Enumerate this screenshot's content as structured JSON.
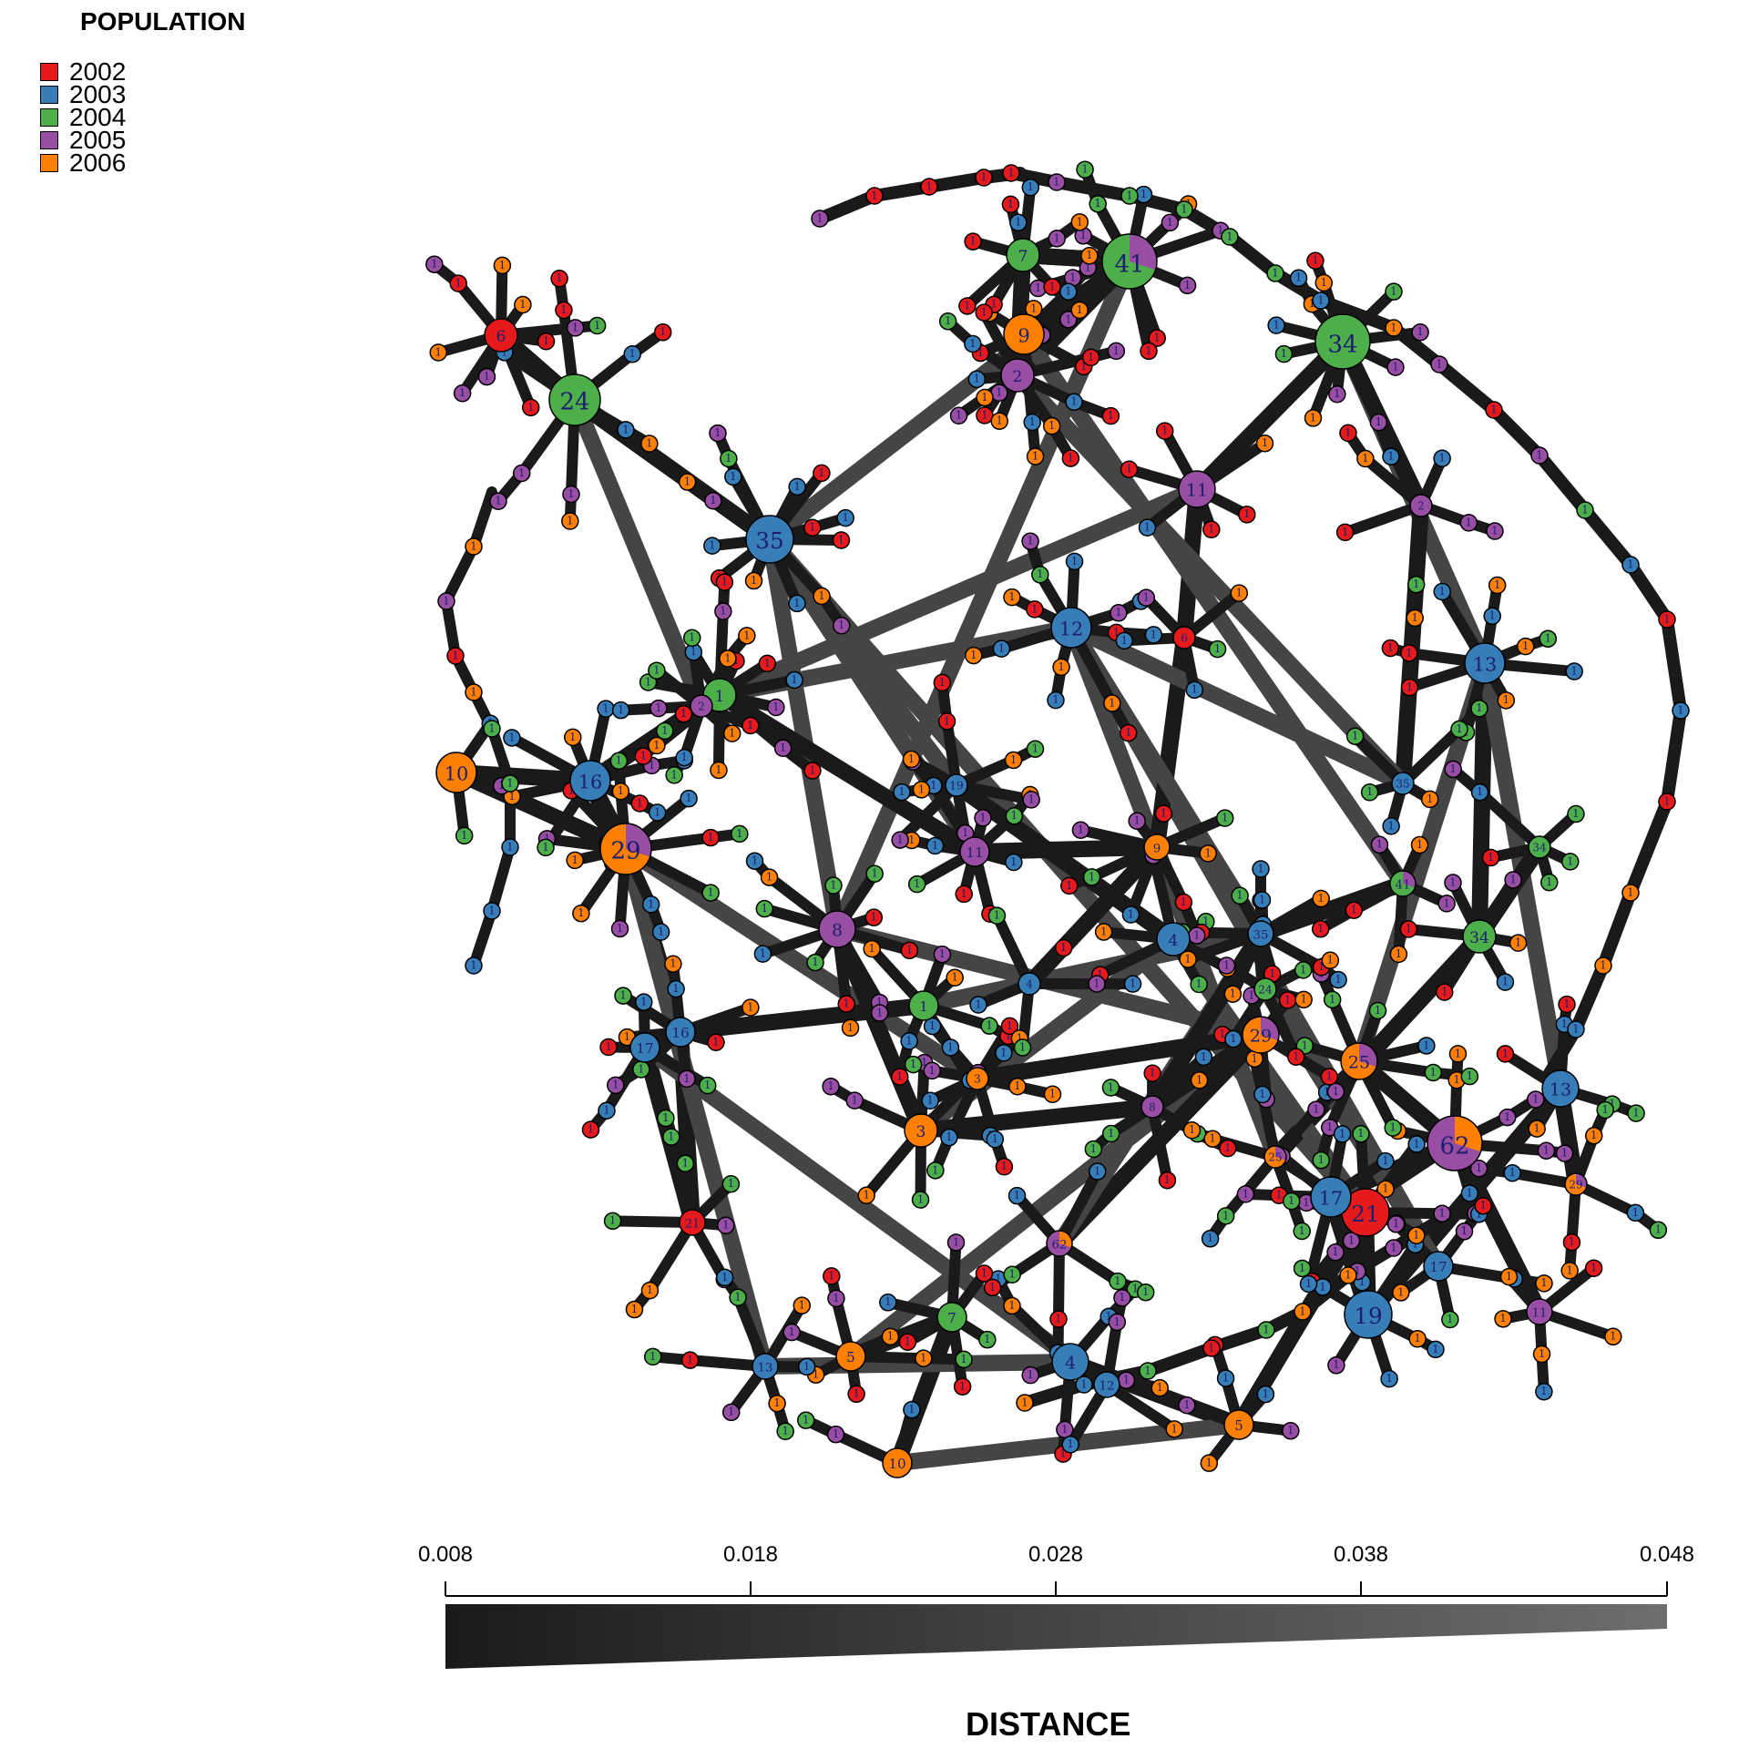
{
  "legend": {
    "title": "POPULATION",
    "items": [
      {
        "label": "2002",
        "color": "#e41a1c"
      },
      {
        "label": "2003",
        "color": "#377eb8"
      },
      {
        "label": "2004",
        "color": "#4daf4a"
      },
      {
        "label": "2005",
        "color": "#984ea3"
      },
      {
        "label": "2006",
        "color": "#ff7f00"
      }
    ]
  },
  "scale": {
    "title": "DISTANCE",
    "ticks": [
      "0.008",
      "0.018",
      "0.028",
      "0.038",
      "0.048"
    ],
    "color_start": "#1a1a1a",
    "color_end": "#6e6e6e"
  },
  "network": {
    "edge_color": "#1a1a1a",
    "edge_color_long": "#454545",
    "labeled_nodes": [
      {
        "label": "41",
        "colors": [
          "#4daf4a",
          "#984ea3"
        ]
      },
      {
        "label": "34",
        "colors": [
          "#4daf4a"
        ]
      },
      {
        "label": "35",
        "colors": [
          "#377eb8"
        ]
      },
      {
        "label": "29",
        "colors": [
          "#ff7f00",
          "#984ea3"
        ]
      },
      {
        "label": "62",
        "colors": [
          "#984ea3",
          "#ff7f00"
        ]
      },
      {
        "label": "25",
        "colors": [
          "#ff7f00",
          "#984ea3"
        ]
      },
      {
        "label": "24",
        "colors": [
          "#4daf4a"
        ]
      },
      {
        "label": "21",
        "colors": [
          "#e41a1c"
        ]
      },
      {
        "label": "19",
        "colors": [
          "#377eb8"
        ]
      },
      {
        "label": "17",
        "colors": [
          "#377eb8"
        ]
      },
      {
        "label": "16",
        "colors": [
          "#377eb8"
        ]
      },
      {
        "label": "13",
        "colors": [
          "#377eb8"
        ]
      },
      {
        "label": "12",
        "colors": [
          "#377eb8"
        ]
      },
      {
        "label": "11",
        "colors": [
          "#984ea3"
        ]
      },
      {
        "label": "10",
        "colors": [
          "#ff7f00"
        ]
      },
      {
        "label": "9",
        "colors": [
          "#ff7f00"
        ]
      },
      {
        "label": "8",
        "colors": [
          "#984ea3"
        ]
      },
      {
        "label": "7",
        "colors": [
          "#4daf4a"
        ]
      },
      {
        "label": "6",
        "colors": [
          "#e41a1c"
        ]
      },
      {
        "label": "5",
        "colors": [
          "#ff7f00"
        ]
      },
      {
        "label": "4",
        "colors": [
          "#377eb8"
        ]
      },
      {
        "label": "3",
        "colors": [
          "#ff7f00"
        ]
      },
      {
        "label": "2",
        "colors": [
          "#984ea3"
        ]
      },
      {
        "label": "1",
        "colors": [
          "#4daf4a"
        ]
      }
    ]
  }
}
